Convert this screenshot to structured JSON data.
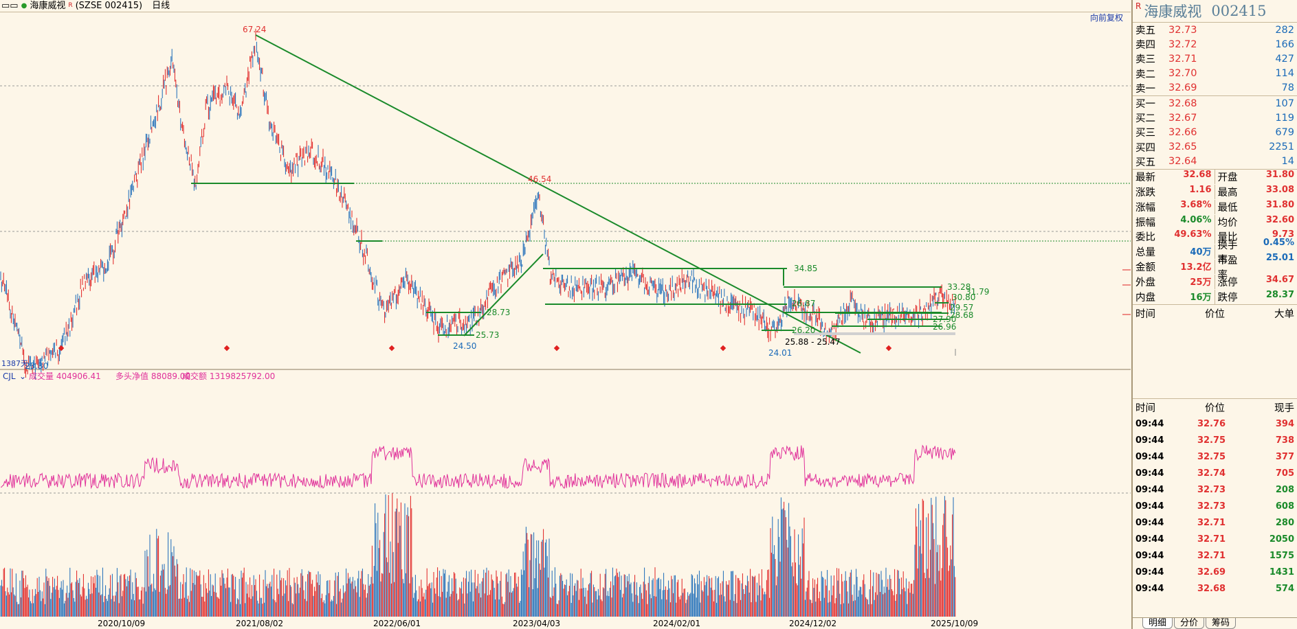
{
  "topbar": {
    "stock_name": "海康威视",
    "r_mark": "R",
    "code": "(SZSE 002415)",
    "period": "日线"
  },
  "chart": {
    "restore_label": "向前复权",
    "price_labels": [
      "67.24",
      "46.54",
      "34.85",
      "33.28",
      "31.79",
      "30.80",
      "29.57",
      "28.68",
      "27.90",
      "26.96",
      "28.73",
      "25.73",
      "24.50",
      "26.20",
      "25.88 - 25.47",
      "24.01",
      "23.30",
      "26.87"
    ],
    "day_count": "1387天",
    "vol_indicator": "CJL",
    "vol_labels": [
      "成交量 404906.41",
      "多头净值 88089.00",
      "成交额 1319825792.00"
    ],
    "x_ticks": [
      "2020/10/09",
      "2021/08/02",
      "2022/06/01",
      "2023/04/03",
      "2024/02/01",
      "2024/12/02",
      "2025/10/09"
    ]
  },
  "panel": {
    "r_mark": "R",
    "name": "海康威视",
    "code": "002415",
    "asks": [
      {
        "label": "卖五",
        "price": "32.73",
        "vol": "282"
      },
      {
        "label": "卖四",
        "price": "32.72",
        "vol": "166"
      },
      {
        "label": "卖三",
        "price": "32.71",
        "vol": "427"
      },
      {
        "label": "卖二",
        "price": "32.70",
        "vol": "114"
      },
      {
        "label": "卖一",
        "price": "32.69",
        "vol": "78"
      }
    ],
    "bids": [
      {
        "label": "买一",
        "price": "32.68",
        "vol": "107"
      },
      {
        "label": "买二",
        "price": "32.67",
        "vol": "119"
      },
      {
        "label": "买三",
        "price": "32.66",
        "vol": "679"
      },
      {
        "label": "买四",
        "price": "32.65",
        "vol": "2251"
      },
      {
        "label": "买五",
        "price": "32.64",
        "vol": "14"
      }
    ],
    "quotes": [
      [
        {
          "label": "最新",
          "val": "32.68",
          "color": "#e03030"
        },
        {
          "label": "开盘",
          "val": "31.80",
          "color": "#e03030"
        }
      ],
      [
        {
          "label": "涨跌",
          "val": "1.16",
          "color": "#e03030"
        },
        {
          "label": "最高",
          "val": "33.08",
          "color": "#e03030"
        }
      ],
      [
        {
          "label": "涨幅",
          "val": "3.68%",
          "color": "#e03030"
        },
        {
          "label": "最低",
          "val": "31.80",
          "color": "#e03030"
        }
      ],
      [
        {
          "label": "振幅",
          "val": "4.06%",
          "color": "#1a8a2a"
        },
        {
          "label": "均价",
          "val": "32.60",
          "color": "#e03030"
        }
      ],
      [
        {
          "label": "委比",
          "val": "49.63%",
          "color": "#e03030"
        },
        {
          "label": "量比",
          "val": "9.73",
          "color": "#e03030"
        }
      ],
      [
        {
          "label": "总量",
          "val": "40万",
          "color": "#1a6ab8"
        },
        {
          "label": "换手率",
          "val": "0.45%",
          "color": "#1a6ab8"
        }
      ],
      [
        {
          "label": "金额",
          "val": "13.2亿",
          "color": "#e03030"
        },
        {
          "label": "市盈率",
          "val": "25.01",
          "color": "#1a6ab8"
        }
      ],
      [
        {
          "label": "外盘",
          "val": "25万",
          "color": "#e03030"
        },
        {
          "label": "涨停",
          "val": "34.67",
          "color": "#e03030"
        }
      ],
      [
        {
          "label": "内盘",
          "val": "16万",
          "color": "#1a8a2a"
        },
        {
          "label": "跌停",
          "val": "28.37",
          "color": "#1a8a2a"
        }
      ]
    ],
    "bigorder_header": [
      "时间",
      "价位",
      "大单"
    ],
    "trades_header": [
      "时间",
      "价位",
      "现手"
    ],
    "trades": [
      {
        "time": "09:44",
        "price": "32.76",
        "vol": "394",
        "color": "#e03030"
      },
      {
        "time": "09:44",
        "price": "32.75",
        "vol": "738",
        "color": "#e03030"
      },
      {
        "time": "09:44",
        "price": "32.75",
        "vol": "377",
        "color": "#e03030"
      },
      {
        "time": "09:44",
        "price": "32.74",
        "vol": "705",
        "color": "#e03030"
      },
      {
        "time": "09:44",
        "price": "32.73",
        "vol": "208",
        "color": "#1a8a2a"
      },
      {
        "time": "09:44",
        "price": "32.73",
        "vol": "608",
        "color": "#1a8a2a"
      },
      {
        "time": "09:44",
        "price": "32.71",
        "vol": "280",
        "color": "#1a8a2a"
      },
      {
        "time": "09:44",
        "price": "32.71",
        "vol": "2050",
        "color": "#1a8a2a"
      },
      {
        "time": "09:44",
        "price": "32.71",
        "vol": "1575",
        "color": "#1a8a2a"
      },
      {
        "time": "09:44",
        "price": "32.69",
        "vol": "1431",
        "color": "#1a8a2a"
      },
      {
        "time": "09:44",
        "price": "32.68",
        "vol": "574",
        "color": "#1a8a2a"
      }
    ],
    "tabs": [
      "明细",
      "分价",
      "筹码"
    ]
  }
}
